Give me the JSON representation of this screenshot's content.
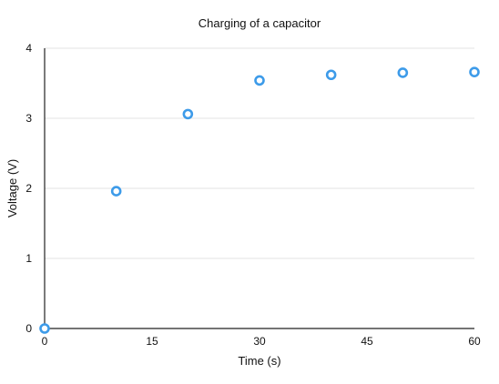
{
  "chart_data": {
    "type": "scatter",
    "title": "Charging of a capacitor",
    "xlabel": "Time (s)",
    "ylabel": "Voltage (V)",
    "xlim": [
      0,
      60
    ],
    "ylim": [
      0,
      4
    ],
    "xticks": [
      0,
      15,
      30,
      45,
      60
    ],
    "yticks": [
      0,
      1,
      2,
      3,
      4
    ],
    "grid": "horizontal",
    "legend": "none",
    "series": [
      {
        "color": "#3d9be9",
        "marker": "hollow-circle",
        "points": [
          {
            "x": 0,
            "y": 0
          },
          {
            "x": 10,
            "y": 1.96
          },
          {
            "x": 20,
            "y": 3.06
          },
          {
            "x": 30,
            "y": 3.54
          },
          {
            "x": 40,
            "y": 3.62
          },
          {
            "x": 50,
            "y": 3.65
          },
          {
            "x": 60,
            "y": 3.66
          }
        ]
      }
    ]
  }
}
